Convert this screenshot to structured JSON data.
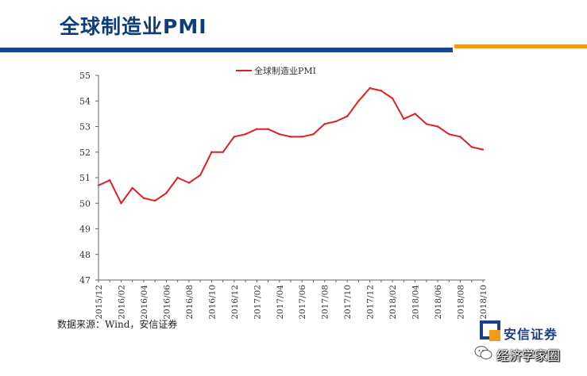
{
  "page": {
    "title": "全球制造业PMI",
    "source": "数据来源：Wind，安信证券",
    "brand_name": "安信证券",
    "watermark": "经济学家圈"
  },
  "colors": {
    "title": "#0e3d7a",
    "band_blue": "#17449a",
    "band_orange": "#f29a1a",
    "series_line": "#e02020"
  },
  "chart_data": {
    "type": "line",
    "title": "",
    "xlabel": "",
    "ylabel": "",
    "ylim": [
      47,
      55
    ],
    "yticks": [
      "47",
      "48",
      "49",
      "50",
      "51",
      "52",
      "53",
      "54",
      "55"
    ],
    "legend": "top-center",
    "grid": false,
    "x": [
      "2015/12",
      "2016/01",
      "2016/02",
      "2016/03",
      "2016/04",
      "2016/05",
      "2016/06",
      "2016/07",
      "2016/08",
      "2016/09",
      "2016/10",
      "2016/11",
      "2016/12",
      "2017/01",
      "2017/02",
      "2017/03",
      "2017/04",
      "2017/05",
      "2017/06",
      "2017/07",
      "2017/08",
      "2017/09",
      "2017/10",
      "2017/11",
      "2017/12",
      "2018/01",
      "2018/02",
      "2018/03",
      "2018/04",
      "2018/05",
      "2018/06",
      "2018/07",
      "2018/08",
      "2018/09",
      "2018/10"
    ],
    "xtick_labels": [
      "2015/12",
      "2016/02",
      "2016/04",
      "2016/06",
      "2016/08",
      "2016/10",
      "2016/12",
      "2017/02",
      "2017/04",
      "2017/06",
      "2017/08",
      "2017/10",
      "2017/12",
      "2018/02",
      "2018/04",
      "2018/06",
      "2018/08",
      "2018/10"
    ],
    "series": [
      {
        "name": "全球制造业PMI",
        "values": [
          50.7,
          50.9,
          50.0,
          50.6,
          50.2,
          50.1,
          50.4,
          51.0,
          50.8,
          51.1,
          52.0,
          52.0,
          52.6,
          52.7,
          52.9,
          52.9,
          52.7,
          52.6,
          52.6,
          52.7,
          53.1,
          53.2,
          53.4,
          54.0,
          54.5,
          54.4,
          54.1,
          53.3,
          53.5,
          53.1,
          53.0,
          52.7,
          52.6,
          52.2,
          52.1
        ]
      }
    ]
  }
}
